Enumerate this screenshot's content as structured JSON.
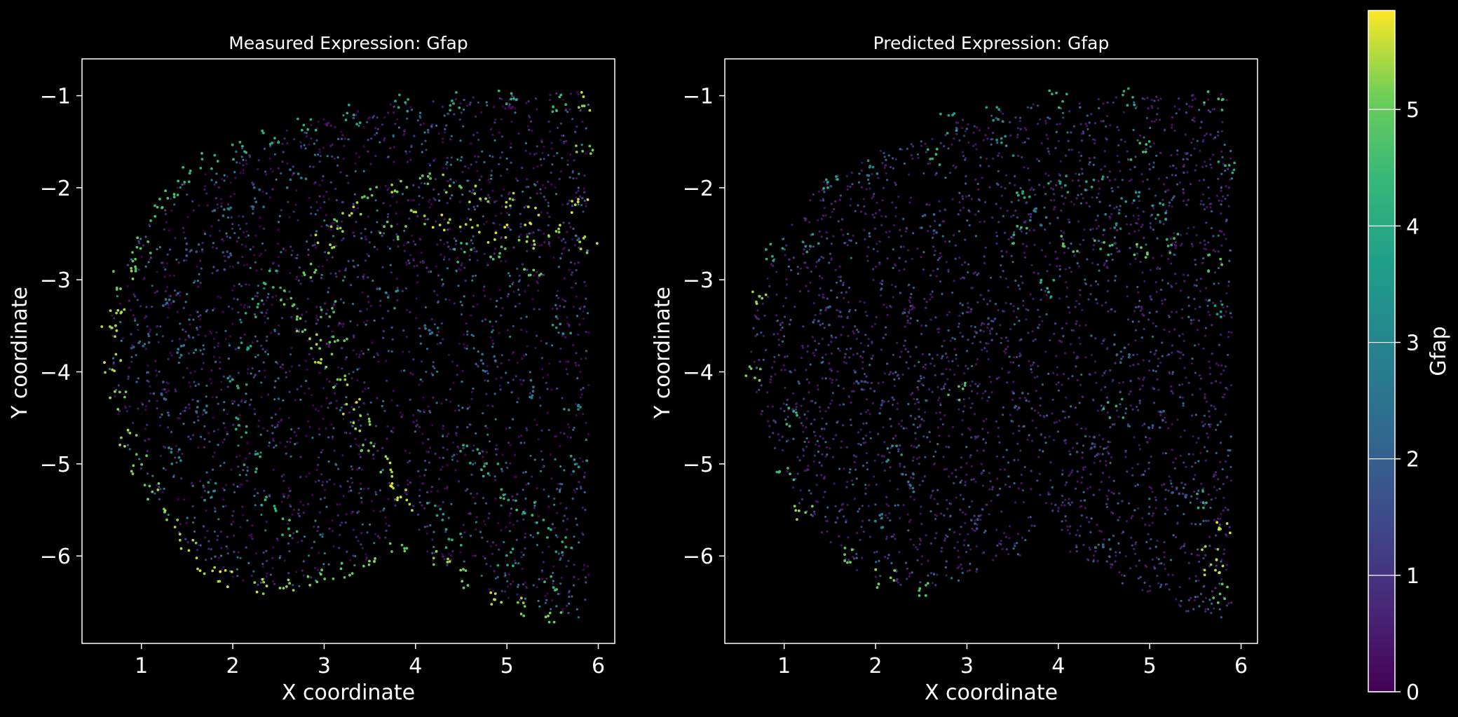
{
  "chart_data": [
    {
      "type": "scatter",
      "title": "Measured Expression: Gfap",
      "xlabel": "X coordinate",
      "ylabel": "Y coordinate",
      "xlim": [
        0.35,
        6.18
      ],
      "ylim": [
        -6.95,
        -0.6
      ],
      "xticks": [
        "1",
        "2",
        "3",
        "4",
        "5",
        "6"
      ],
      "yticks": [
        "−1",
        "−2",
        "−3",
        "−4",
        "−5",
        "−6"
      ],
      "xtick_values": [
        1,
        2,
        3,
        4,
        5,
        6
      ],
      "ytick_values": [
        -1,
        -2,
        -3,
        -4,
        -5,
        -6
      ],
      "colormap": "viridis",
      "series": [
        {
          "values_description": "high Gfap along outer cortex boundary, hippocampus, corpus callosum",
          "points": [
            [
              0.68,
              -3.9,
              5.8
            ],
            [
              0.66,
              -3.6,
              5.7
            ],
            [
              0.72,
              -3.3,
              5.6
            ],
            [
              0.75,
              -4.3,
              5.5
            ],
            [
              0.8,
              -3.0,
              5.4
            ],
            [
              0.85,
              -4.7,
              5.6
            ],
            [
              0.9,
              -2.8,
              5.2
            ],
            [
              0.95,
              -5.0,
              5.3
            ],
            [
              1.0,
              -2.6,
              5.0
            ],
            [
              1.1,
              -5.3,
              5.4
            ],
            [
              1.15,
              -2.3,
              4.8
            ],
            [
              1.3,
              -2.05,
              4.9
            ],
            [
              1.3,
              -5.6,
              5.5
            ],
            [
              1.5,
              -1.85,
              4.7
            ],
            [
              1.5,
              -5.85,
              5.6
            ],
            [
              1.7,
              -6.1,
              5.7
            ],
            [
              1.75,
              -1.7,
              4.6
            ],
            [
              1.95,
              -6.25,
              5.8
            ],
            [
              2.05,
              -1.6,
              4.5
            ],
            [
              2.3,
              -6.35,
              5.7
            ],
            [
              2.4,
              -1.45,
              4.4
            ],
            [
              2.6,
              -6.35,
              5.6
            ],
            [
              2.8,
              -1.3,
              4.3
            ],
            [
              2.9,
              -6.25,
              5.4
            ],
            [
              3.2,
              -6.15,
              5.3
            ],
            [
              3.3,
              -1.2,
              4.2
            ],
            [
              3.5,
              -6.05,
              5.5
            ],
            [
              3.8,
              -5.9,
              5.2
            ],
            [
              3.85,
              -1.1,
              4.1
            ],
            [
              4.4,
              -1.05,
              4.3
            ],
            [
              4.3,
              -6.05,
              5.6
            ],
            [
              4.6,
              -6.25,
              5.4
            ],
            [
              4.9,
              -6.45,
              5.7
            ],
            [
              5.0,
              -1.0,
              4.5
            ],
            [
              5.2,
              -6.55,
              5.5
            ],
            [
              5.5,
              -6.65,
              5.3
            ],
            [
              5.6,
              -1.1,
              4.7
            ],
            [
              5.85,
              -1.05,
              5.6
            ],
            [
              5.85,
              -1.6,
              5.3
            ],
            [
              5.8,
              -2.2,
              5.8
            ],
            [
              5.9,
              -2.6,
              5.7
            ],
            [
              3.0,
              -2.6,
              5.6
            ],
            [
              3.1,
              -2.4,
              5.4
            ],
            [
              3.3,
              -2.2,
              5.7
            ],
            [
              3.5,
              -2.05,
              5.3
            ],
            [
              3.8,
              -1.95,
              5.5
            ],
            [
              4.1,
              -1.9,
              5.2
            ],
            [
              4.4,
              -1.95,
              5.4
            ],
            [
              4.7,
              -2.05,
              5.6
            ],
            [
              5.0,
              -2.15,
              5.5
            ],
            [
              5.3,
              -2.3,
              5.8
            ],
            [
              5.5,
              -2.5,
              5.6
            ],
            [
              4.3,
              -2.4,
              5.8
            ],
            [
              4.6,
              -2.45,
              5.7
            ],
            [
              4.9,
              -2.5,
              5.9
            ],
            [
              5.2,
              -2.55,
              5.6
            ],
            [
              4.0,
              -2.35,
              5.5
            ],
            [
              3.7,
              -2.45,
              5.2
            ],
            [
              4.5,
              -2.7,
              4.8
            ],
            [
              4.9,
              -2.75,
              5.0
            ],
            [
              5.3,
              -2.85,
              5.2
            ],
            [
              2.8,
              -2.9,
              5.3
            ],
            [
              2.6,
              -3.2,
              5.1
            ],
            [
              2.7,
              -3.5,
              5.4
            ],
            [
              2.9,
              -3.7,
              5.6
            ],
            [
              3.0,
              -3.9,
              5.7
            ],
            [
              3.2,
              -4.1,
              5.5
            ],
            [
              3.3,
              -4.4,
              5.8
            ],
            [
              3.4,
              -4.6,
              5.6
            ],
            [
              3.5,
              -4.8,
              5.4
            ],
            [
              3.7,
              -5.0,
              5.7
            ],
            [
              3.8,
              -5.2,
              5.9
            ],
            [
              3.9,
              -5.4,
              5.8
            ],
            [
              3.05,
              -3.3,
              4.9
            ],
            [
              3.15,
              -3.6,
              5.2
            ],
            [
              2.45,
              -3.0,
              4.6
            ],
            [
              2.25,
              -3.3,
              4.4
            ],
            [
              2.1,
              -3.7,
              4.2
            ],
            [
              2.05,
              -4.1,
              4.0
            ],
            [
              2.1,
              -4.6,
              4.1
            ],
            [
              2.2,
              -5.0,
              4.3
            ],
            [
              2.4,
              -5.4,
              4.5
            ],
            [
              2.6,
              -5.7,
              4.7
            ],
            [
              4.6,
              -4.9,
              4.2
            ],
            [
              4.8,
              -5.1,
              4.5
            ],
            [
              5.0,
              -5.3,
              4.3
            ],
            [
              5.2,
              -5.5,
              4.6
            ],
            [
              5.4,
              -5.7,
              4.4
            ],
            [
              5.6,
              -5.9,
              4.1
            ],
            [
              4.2,
              -5.5,
              4.0
            ],
            [
              4.4,
              -5.8,
              4.4
            ],
            [
              5.0,
              -6.0,
              4.2
            ],
            [
              5.5,
              -6.3,
              4.6
            ],
            [
              3.7,
              -3.2,
              3.4
            ],
            [
              4.2,
              -3.6,
              2.8
            ],
            [
              4.8,
              -3.9,
              2.4
            ],
            [
              5.3,
              -4.2,
              2.9
            ],
            [
              5.6,
              -3.5,
              3.8
            ],
            [
              5.7,
              -4.4,
              3.2
            ],
            [
              5.8,
              -5.0,
              3.6
            ],
            [
              1.3,
              -3.2,
              2.6
            ],
            [
              1.5,
              -3.8,
              3.1
            ],
            [
              1.7,
              -4.4,
              2.7
            ],
            [
              1.4,
              -4.9,
              3.3
            ],
            [
              1.8,
              -5.3,
              3.6
            ],
            [
              1.2,
              -4.2,
              2.2
            ],
            [
              1.6,
              -2.7,
              2.1
            ],
            [
              1.9,
              -2.3,
              2.8
            ],
            [
              2.3,
              -2.1,
              2.4
            ],
            [
              2.7,
              -1.9,
              2.9
            ],
            [
              1.0,
              -3.7,
              2.0
            ],
            [
              2.0,
              -2.8,
              1.5
            ]
          ]
        }
      ]
    },
    {
      "type": "scatter",
      "title": "Predicted Expression: Gfap",
      "xlabel": "X coordinate",
      "ylabel": "Y coordinate",
      "xlim": [
        0.35,
        6.18
      ],
      "ylim": [
        -6.95,
        -0.6
      ],
      "xticks": [
        "1",
        "2",
        "3",
        "4",
        "5",
        "6"
      ],
      "yticks": [
        "−1",
        "−2",
        "−3",
        "−4",
        "−5",
        "−6"
      ],
      "xtick_values": [
        1,
        2,
        3,
        4,
        5,
        6
      ],
      "ytick_values": [
        -1,
        -2,
        -3,
        -4,
        -5,
        -6
      ],
      "colormap": "viridis",
      "series": [
        {
          "values_description": "mostly low predicted Gfap with sparse high cells",
          "points": [
            [
              0.72,
              -3.2,
              5.6
            ],
            [
              0.68,
              -4.0,
              5.3
            ],
            [
              0.9,
              -2.7,
              4.4
            ],
            [
              1.0,
              -5.1,
              4.8
            ],
            [
              1.2,
              -5.5,
              5.5
            ],
            [
              1.5,
              -1.95,
              4.1
            ],
            [
              1.7,
              -6.0,
              5.2
            ],
            [
              2.1,
              -6.25,
              5.6
            ],
            [
              2.5,
              -6.35,
              4.9
            ],
            [
              2.8,
              -1.3,
              4.0
            ],
            [
              3.3,
              -1.2,
              3.8
            ],
            [
              4.0,
              -1.05,
              4.6
            ],
            [
              4.8,
              -1.0,
              4.3
            ],
            [
              5.7,
              -1.05,
              4.8
            ],
            [
              5.85,
              -1.8,
              4.2
            ],
            [
              5.75,
              -2.8,
              5.1
            ],
            [
              5.7,
              -3.3,
              3.9
            ],
            [
              5.8,
              -5.7,
              5.8
            ],
            [
              5.65,
              -6.0,
              5.6
            ],
            [
              5.7,
              -6.2,
              5.9
            ],
            [
              5.6,
              -5.4,
              4.4
            ],
            [
              5.75,
              -6.4,
              5.2
            ],
            [
              3.6,
              -2.1,
              4.2
            ],
            [
              4.0,
              -1.95,
              3.8
            ],
            [
              4.4,
              -1.95,
              4.0
            ],
            [
              4.8,
              -2.05,
              3.6
            ],
            [
              5.1,
              -2.25,
              4.1
            ],
            [
              3.6,
              -2.5,
              4.8
            ],
            [
              4.1,
              -2.6,
              5.2
            ],
            [
              4.5,
              -2.65,
              4.9
            ],
            [
              4.9,
              -2.7,
              5.3
            ],
            [
              5.2,
              -2.6,
              4.6
            ],
            [
              3.8,
              -2.3,
              3.0
            ],
            [
              4.6,
              -2.35,
              3.3
            ],
            [
              1.4,
              -3.4,
              2.2
            ],
            [
              1.8,
              -4.1,
              1.9
            ],
            [
              2.2,
              -4.9,
              3.5
            ],
            [
              2.4,
              -5.2,
              2.8
            ],
            [
              2.0,
              -5.6,
              3.1
            ],
            [
              2.6,
              -2.4,
              2.4
            ],
            [
              3.2,
              -3.5,
              1.6
            ],
            [
              3.6,
              -4.3,
              2.0
            ],
            [
              4.3,
              -4.8,
              1.8
            ],
            [
              4.7,
              -3.8,
              2.5
            ],
            [
              5.1,
              -4.5,
              2.2
            ],
            [
              5.3,
              -5.3,
              1.9
            ],
            [
              4.5,
              -5.9,
              2.6
            ],
            [
              3.1,
              -5.6,
              1.7
            ],
            [
              1.3,
              -2.6,
              3.8
            ],
            [
              2.0,
              -1.8,
              3.1
            ],
            [
              2.6,
              -1.65,
              4.5
            ],
            [
              3.4,
              -1.55,
              3.5
            ],
            [
              4.9,
              -1.6,
              4.7
            ],
            [
              1.1,
              -4.5,
              4.6
            ],
            [
              2.9,
              -4.2,
              4.9
            ],
            [
              3.9,
              -3.1,
              4.4
            ],
            [
              4.6,
              -4.4,
              4.3
            ]
          ]
        }
      ]
    }
  ],
  "colorbar": {
    "label": "Gfap",
    "colormap": "viridis",
    "range": [
      0,
      5.85
    ],
    "ticks": [
      "0",
      "1",
      "2",
      "3",
      "4",
      "5"
    ],
    "tick_values": [
      0,
      1,
      2,
      3,
      4,
      5
    ]
  },
  "background_density": {
    "low_color": "#3b1c5a",
    "background": "#000000"
  }
}
